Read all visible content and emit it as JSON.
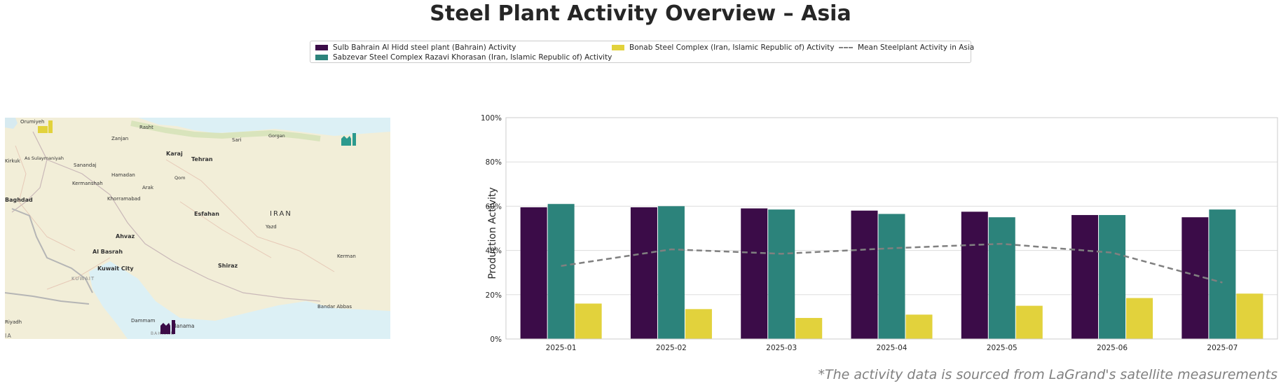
{
  "title": "Steel Plant Activity Overview – Asia",
  "footnote": "*The activity data is sourced from LaGrand's satellite measurements",
  "legend": {
    "items": [
      {
        "label": "Sulb Bahrain Al Hidd steel plant (Bahrain) Activity",
        "color": "#3b0c48",
        "kind": "bar"
      },
      {
        "label": "Sabzevar Steel Complex Razavi Khorasan (Iran, Islamic Republic of) Activity",
        "color": "#2c837b",
        "kind": "bar"
      },
      {
        "label": "Bonab Steel Complex (Iran, Islamic Republic of) Activity",
        "color": "#e2d23c",
        "kind": "bar"
      },
      {
        "label": "Mean Steelplant Activity in Asia",
        "color": "#808080",
        "kind": "line"
      }
    ]
  },
  "map": {
    "labels": [
      "Orumiyeh",
      "Rasht",
      "Zanjan",
      "Sari",
      "Gorgan",
      "Karaj",
      "Tehran",
      "Kirkuk",
      "As Sulaymaniyah",
      "Sanandaj",
      "Hamadan",
      "Qom",
      "Kermanshah",
      "Arak",
      "Baghdad",
      "Khorramabad",
      "Esfahan",
      "IRAN",
      "Yazd",
      "Ahvaz",
      "Al Basrah",
      "Shiraz",
      "Kuwait City",
      "KUWAIT",
      "Kerman",
      "Bandar Abbas",
      "Dammam",
      "Manama",
      "BAHRAIN",
      "Riyadh",
      "IA"
    ],
    "markers": [
      {
        "name": "bonab",
        "color": "#e2d23c"
      },
      {
        "name": "sabzevar",
        "color": "#2c9a8e"
      },
      {
        "name": "sulb-bahrain",
        "color": "#3b0c48"
      }
    ]
  },
  "chart_data": {
    "type": "bar",
    "categories": [
      "2025-01",
      "2025-02",
      "2025-03",
      "2025-04",
      "2025-05",
      "2025-06",
      "2025-07"
    ],
    "series": [
      {
        "name": "Sulb Bahrain Al Hidd steel plant (Bahrain) Activity",
        "color": "#3b0c48",
        "values": [
          59.5,
          59.5,
          59,
          58,
          57.5,
          56,
          55
        ]
      },
      {
        "name": "Sabzevar Steel Complex Razavi Khorasan (Iran, Islamic Republic of) Activity",
        "color": "#2c837b",
        "values": [
          61,
          60,
          58.5,
          56.5,
          55,
          56,
          58.5
        ]
      },
      {
        "name": "Bonab Steel Complex (Iran, Islamic Republic of) Activity",
        "color": "#e2d23c",
        "values": [
          16,
          13.5,
          9.5,
          11,
          15,
          18.5,
          20.5
        ]
      }
    ],
    "mean_line": {
      "name": "Mean Steelplant Activity in Asia",
      "color": "#808080",
      "values": [
        33,
        40.5,
        38.5,
        41,
        43,
        39,
        25.5
      ]
    },
    "ylabel": "Production Activity",
    "ylim": [
      0,
      100
    ],
    "yticks": [
      0,
      20,
      40,
      60,
      80,
      100
    ],
    "ytick_labels": [
      "0%",
      "20%",
      "40%",
      "60%",
      "80%",
      "100%"
    ],
    "grid": "horizontal"
  }
}
